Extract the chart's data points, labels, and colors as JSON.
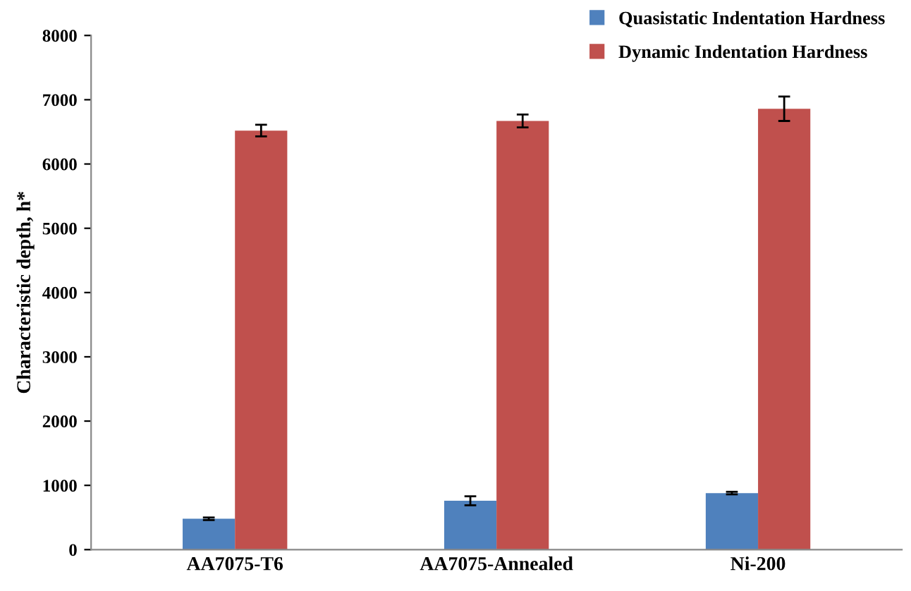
{
  "chart_data": {
    "type": "bar",
    "ylabel": "Characteristic depth, h*",
    "categories": [
      "AA7075-T6",
      "AA7075-Annealed",
      "Ni-200"
    ],
    "series": [
      {
        "name": "Quasistatic Indentation Hardness",
        "color": "#4f81bd",
        "values": [
          480,
          760,
          880
        ],
        "errors": [
          20,
          70,
          20
        ]
      },
      {
        "name": "Dynamic Indentation Hardness",
        "color": "#c0504d",
        "values": [
          6520,
          6670,
          6860
        ],
        "errors": [
          90,
          100,
          190
        ]
      }
    ],
    "ylim": [
      0,
      8000
    ],
    "yticks": [
      0,
      1000,
      2000,
      3000,
      4000,
      5000,
      6000,
      7000,
      8000
    ],
    "grid": false,
    "legend": "top right"
  }
}
